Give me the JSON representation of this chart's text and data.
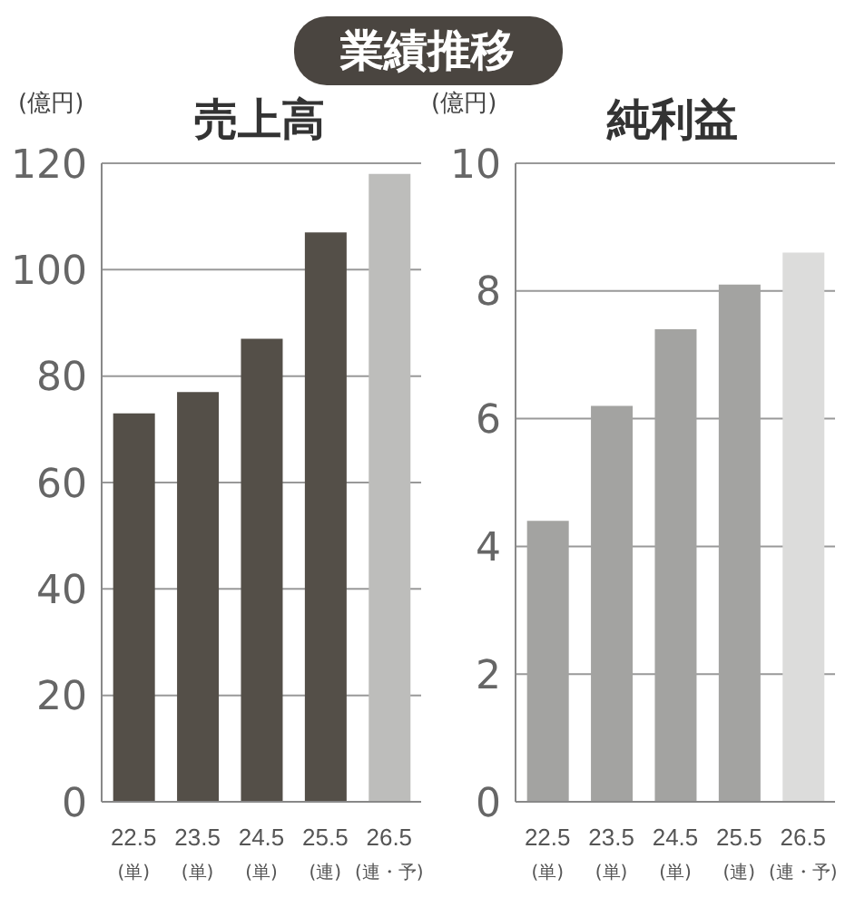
{
  "chart_data": [
    {
      "type": "bar",
      "title": "売上高",
      "ylabel": "(億円)",
      "annotations": [
        "業績推移"
      ],
      "categories": [
        "22.5\n(単)",
        "23.5\n(単)",
        "24.5\n(単)",
        "25.5\n(連)",
        "26.5\n(連・予)"
      ],
      "values": [
        73,
        77,
        87,
        107,
        118
      ],
      "colors": [
        "#544f48",
        "#544f48",
        "#544f48",
        "#544f48",
        "#bdbdbb"
      ],
      "ylim": [
        0,
        120
      ],
      "yticks": [
        0,
        20,
        40,
        60,
        80,
        100,
        120
      ],
      "grid": "y",
      "legend": false
    },
    {
      "type": "bar",
      "title": "純利益",
      "ylabel": "(億円)",
      "categories": [
        "22.5\n(単)",
        "23.5\n(単)",
        "24.5\n(単)",
        "25.5\n(連)",
        "26.5\n(連・予)"
      ],
      "values": [
        4.4,
        6.2,
        7.4,
        8.1,
        8.6
      ],
      "colors": [
        "#a3a3a1",
        "#a3a3a1",
        "#a3a3a1",
        "#a3a3a1",
        "#dcdcdb"
      ],
      "ylim": [
        0,
        10
      ],
      "yticks": [
        0,
        2,
        4,
        6,
        8,
        10
      ],
      "grid": "y",
      "legend": false
    }
  ]
}
